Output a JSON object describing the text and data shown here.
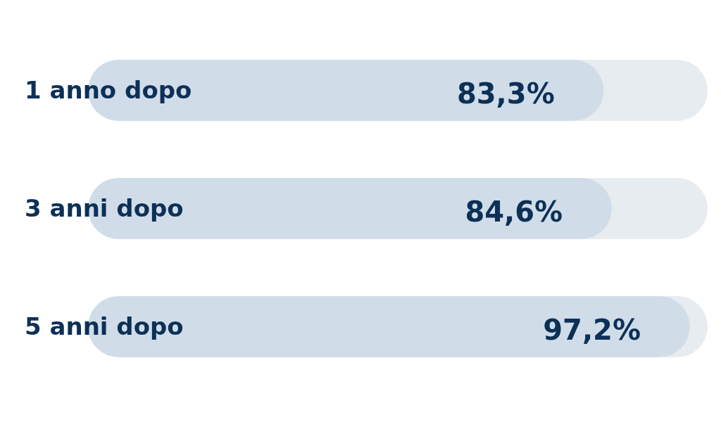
{
  "chart_data": {
    "type": "bar",
    "orientation": "horizontal",
    "categories": [
      "1 anno dopo",
      "3 anni dopo",
      "5 anni dopo"
    ],
    "values": [
      83.3,
      84.6,
      97.2
    ],
    "value_labels": [
      "83,3%",
      "84,6%",
      "97,2%"
    ],
    "color": "#d0dde9"
  }
}
